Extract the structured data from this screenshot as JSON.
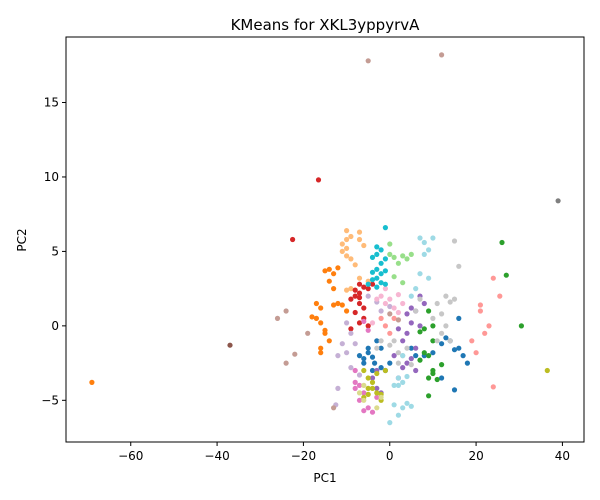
{
  "chart_data": {
    "type": "scatter",
    "title": "KMeans for XKL3yppyrvA",
    "xlabel": "PC1",
    "ylabel": "PC2",
    "xlim": [
      -75,
      45
    ],
    "ylim": [
      -7.8,
      19.4
    ],
    "xticks": [
      -60,
      -40,
      -20,
      0,
      20,
      40
    ],
    "yticks": [
      -5,
      0,
      5,
      10,
      15
    ],
    "grid": false,
    "legend": "none",
    "colors": {
      "blue": "#1f77b4",
      "light_blue": "#aec7e8",
      "orange": "#ff7f0e",
      "light_orange": "#ffbb78",
      "green": "#2ca02c",
      "light_green": "#98df8a",
      "red": "#d62728",
      "light_red": "#ff9896",
      "purple": "#9467bd",
      "light_purple": "#c5b0d5",
      "brown": "#8c564b",
      "light_brown": "#c49c94",
      "pink": "#e377c2",
      "light_pink": "#f7b6d2",
      "gray": "#7f7f7f",
      "light_gray": "#c7c7c7",
      "olive": "#bcbd22",
      "light_olive": "#dbdb8d",
      "cyan": "#17becf",
      "light_cyan": "#9edae5"
    },
    "series": [
      {
        "color": "blue",
        "points": [
          [
            -5,
            -1.8
          ],
          [
            -4,
            -2.1
          ],
          [
            -3.5,
            -2.5
          ],
          [
            -6,
            -2.2
          ],
          [
            -2,
            -1.5
          ],
          [
            0,
            -2.5
          ],
          [
            5,
            -1.5
          ],
          [
            6,
            -2
          ],
          [
            8,
            -2
          ],
          [
            10,
            -1.8
          ],
          [
            12,
            -1.2
          ],
          [
            15,
            -1.6
          ],
          [
            17,
            -2
          ],
          [
            13,
            -0.8
          ],
          [
            16,
            0.5
          ],
          [
            14,
            -1
          ],
          [
            -3,
            -1
          ],
          [
            -1,
            -3
          ],
          [
            15,
            -4.3
          ],
          [
            12,
            -3.5
          ],
          [
            -4,
            -3
          ],
          [
            -6,
            -2.5
          ],
          [
            -2,
            -2.8
          ],
          [
            -5,
            -1.5
          ],
          [
            -7,
            -2
          ],
          [
            16,
            -1.5
          ],
          [
            18,
            -2.5
          ]
        ]
      },
      {
        "color": "orange",
        "points": [
          [
            -69,
            -3.8
          ],
          [
            -14,
            3.8
          ],
          [
            -13,
            3.5
          ],
          [
            -12,
            3.9
          ],
          [
            -15,
            3.7
          ],
          [
            -16,
            1.2
          ],
          [
            -17,
            0.5
          ],
          [
            -18,
            0.6
          ],
          [
            -16,
            -1.5
          ],
          [
            -14,
            -1
          ],
          [
            -12,
            1.5
          ],
          [
            -11,
            1.4
          ],
          [
            -15,
            -0.3
          ],
          [
            -13,
            2.5
          ],
          [
            -17,
            1.5
          ],
          [
            -16,
            0.2
          ],
          [
            -15,
            -0.5
          ],
          [
            -14,
            3
          ],
          [
            -16,
            -1.8
          ],
          [
            -10,
            1
          ],
          [
            -13,
            1.4
          ]
        ]
      },
      {
        "color": "light_orange",
        "points": [
          [
            -10,
            6.4
          ],
          [
            -9,
            6
          ],
          [
            -10,
            5.8
          ],
          [
            -11,
            5.5
          ],
          [
            -10,
            5.2
          ],
          [
            -11,
            5
          ],
          [
            -10,
            4.7
          ],
          [
            -9,
            4.5
          ],
          [
            -8,
            4.1
          ],
          [
            -7,
            6.3
          ],
          [
            -7,
            5.8
          ],
          [
            -6,
            5.4
          ],
          [
            -9,
            2.5
          ],
          [
            -10,
            2.4
          ],
          [
            -7,
            3.2
          ],
          [
            -5,
            3
          ]
        ]
      },
      {
        "color": "green",
        "points": [
          [
            26,
            5.6
          ],
          [
            27,
            3.4
          ],
          [
            30.5,
            0
          ],
          [
            8,
            -0.2
          ],
          [
            10,
            0
          ],
          [
            9,
            1
          ],
          [
            10,
            -1
          ],
          [
            7,
            -0.4
          ],
          [
            8,
            -1.8
          ],
          [
            9,
            -2
          ],
          [
            10,
            -3.2
          ],
          [
            9,
            -3.5
          ],
          [
            10,
            -3
          ],
          [
            11,
            -3.6
          ],
          [
            9,
            -4.7
          ],
          [
            7,
            -2.3
          ],
          [
            12,
            -2.6
          ]
        ]
      },
      {
        "color": "light_green",
        "points": [
          [
            0,
            4.8
          ],
          [
            1,
            4.6
          ],
          [
            2,
            4.2
          ],
          [
            3,
            4.7
          ],
          [
            4,
            4.5
          ],
          [
            1,
            3.3
          ],
          [
            3,
            2.9
          ],
          [
            5,
            4.8
          ],
          [
            0,
            5.5
          ]
        ]
      },
      {
        "color": "red",
        "points": [
          [
            -16.5,
            9.8
          ],
          [
            -22.5,
            5.8
          ],
          [
            -7,
            2.8
          ],
          [
            -6,
            2.6
          ],
          [
            -5,
            2.5
          ],
          [
            -4,
            2.8
          ],
          [
            -7,
            2.2
          ],
          [
            -8,
            2.4
          ],
          [
            -9,
            1.8
          ],
          [
            -7,
            1.5
          ],
          [
            -6,
            1.2
          ],
          [
            -8,
            0.9
          ],
          [
            -7,
            0.2
          ],
          [
            -6,
            0.5
          ],
          [
            -5,
            0
          ],
          [
            -9,
            -0.2
          ],
          [
            -8,
            2
          ],
          [
            -7,
            1.9
          ]
        ]
      },
      {
        "color": "light_red",
        "points": [
          [
            21,
            1.4
          ],
          [
            21,
            1
          ],
          [
            23,
            0
          ],
          [
            22,
            -0.5
          ],
          [
            25.5,
            2
          ],
          [
            24,
            3.2
          ],
          [
            19,
            -1
          ],
          [
            20,
            -1.8
          ],
          [
            24,
            -4.1
          ],
          [
            1,
            0.5
          ],
          [
            -1,
            0
          ],
          [
            0,
            -0.5
          ],
          [
            -2,
            0.5
          ]
        ]
      },
      {
        "color": "purple",
        "points": [
          [
            5,
            1.2
          ],
          [
            4,
            0.8
          ],
          [
            6,
            1
          ],
          [
            5,
            0.2
          ],
          [
            4,
            -0.5
          ],
          [
            3,
            -1
          ],
          [
            2,
            -0.2
          ],
          [
            6,
            -1.5
          ],
          [
            7,
            2
          ],
          [
            8,
            1.5
          ],
          [
            7,
            0
          ],
          [
            4,
            -2.5
          ],
          [
            5,
            -2.2
          ],
          [
            6,
            -3
          ],
          [
            2,
            -3.5
          ],
          [
            1,
            -2
          ],
          [
            3,
            -2.8
          ],
          [
            -3,
            -4.2
          ],
          [
            -2,
            -4.5
          ],
          [
            -4,
            -3.5
          ],
          [
            -3,
            -3
          ]
        ]
      },
      {
        "color": "light_purple",
        "points": [
          [
            -10,
            0.2
          ],
          [
            -9,
            -0.5
          ],
          [
            -11,
            -1.2
          ],
          [
            -10,
            -1.8
          ],
          [
            -9,
            -2.8
          ],
          [
            -8,
            -1.2
          ],
          [
            -12,
            -2
          ],
          [
            -12,
            -4.2
          ],
          [
            -12.5,
            -5.3
          ],
          [
            -7,
            -3.3
          ],
          [
            -5,
            2
          ],
          [
            -3,
            1.6
          ],
          [
            -2,
            1
          ],
          [
            0,
            1.3
          ]
        ]
      },
      {
        "color": "brown",
        "points": [
          [
            -37,
            -1.3
          ]
        ]
      },
      {
        "color": "light_brown",
        "points": [
          [
            -24,
            1
          ],
          [
            -26,
            0.5
          ],
          [
            -19,
            -0.5
          ],
          [
            -22,
            -1.9
          ],
          [
            -24,
            -2.5
          ],
          [
            -13,
            -5.5
          ],
          [
            -5,
            17.8
          ],
          [
            12,
            18.2
          ],
          [
            0,
            0.8
          ],
          [
            2,
            0.4
          ]
        ]
      },
      {
        "color": "pink",
        "points": [
          [
            -8,
            -4.2
          ],
          [
            -7,
            -4
          ],
          [
            -6,
            -4.5
          ],
          [
            -8,
            -3.8
          ],
          [
            -7,
            -5
          ],
          [
            -6,
            -5.7
          ],
          [
            -5,
            -5.5
          ],
          [
            -4,
            -5.8
          ],
          [
            -3,
            -4.8
          ],
          [
            -8,
            -3
          ],
          [
            -5,
            -0.3
          ],
          [
            -6,
            0.3
          ]
        ]
      },
      {
        "color": "light_pink",
        "points": [
          [
            -3,
            1.8
          ],
          [
            -2,
            2
          ],
          [
            -1,
            1.5
          ],
          [
            0,
            1.8
          ],
          [
            1,
            1.2
          ],
          [
            2,
            2.1
          ],
          [
            3,
            1.5
          ],
          [
            -1,
            2.5
          ],
          [
            -4,
            0.2
          ],
          [
            2,
            0.9
          ]
        ]
      },
      {
        "color": "gray",
        "points": [
          [
            39,
            8.4
          ]
        ]
      },
      {
        "color": "light_gray",
        "points": [
          [
            15,
            5.7
          ],
          [
            16,
            4
          ],
          [
            15,
            1.8
          ],
          [
            14,
            1.6
          ],
          [
            13,
            2
          ],
          [
            11,
            1.5
          ],
          [
            12,
            0.8
          ],
          [
            13,
            0
          ],
          [
            12,
            -0.5
          ],
          [
            14,
            -1
          ],
          [
            3,
            -2
          ],
          [
            2,
            -1.8
          ],
          [
            4,
            -1.5
          ],
          [
            1,
            -1
          ],
          [
            5,
            -2.6
          ],
          [
            2,
            -2.5
          ],
          [
            6,
            1
          ],
          [
            7,
            1.8
          ],
          [
            -3,
            -1.5
          ],
          [
            -2,
            -1
          ],
          [
            0,
            -1.3
          ],
          [
            10,
            0.5
          ],
          [
            11,
            -1
          ]
        ]
      },
      {
        "color": "olive",
        "points": [
          [
            -5,
            -3.5
          ],
          [
            -4,
            -3.8
          ],
          [
            -3,
            -4.5
          ],
          [
            -5,
            -4.6
          ],
          [
            -6,
            -4.8
          ],
          [
            -4,
            -4.2
          ],
          [
            -2,
            -4.6
          ],
          [
            -1,
            -3
          ],
          [
            -6,
            -3
          ],
          [
            -5,
            -4.2
          ],
          [
            -3,
            -3.2
          ],
          [
            -2,
            -5
          ],
          [
            36.5,
            -3
          ]
        ]
      },
      {
        "color": "light_olive",
        "points": [
          [
            -6,
            -4
          ],
          [
            -3,
            -5.5
          ],
          [
            -2,
            -4.8
          ],
          [
            -7,
            -4.5
          ],
          [
            -6,
            -5
          ]
        ]
      },
      {
        "color": "cyan",
        "points": [
          [
            -1,
            6.6
          ],
          [
            -3,
            5.3
          ],
          [
            -2,
            5.1
          ],
          [
            -4,
            4.6
          ],
          [
            -3,
            4.8
          ],
          [
            -2,
            4.2
          ],
          [
            -1,
            4.5
          ],
          [
            -3,
            3.8
          ],
          [
            -4,
            3.6
          ],
          [
            -2,
            3.5
          ],
          [
            -3,
            3.2
          ],
          [
            -1,
            3.7
          ],
          [
            -4,
            3.1
          ],
          [
            -2,
            2.9
          ],
          [
            -3,
            2.6
          ],
          [
            -5,
            2.8
          ],
          [
            -1,
            2.8
          ]
        ]
      },
      {
        "color": "light_cyan",
        "points": [
          [
            7,
            5.9
          ],
          [
            8,
            5.6
          ],
          [
            10,
            5.9
          ],
          [
            9,
            5.1
          ],
          [
            8,
            4.8
          ],
          [
            7,
            3.5
          ],
          [
            9,
            3.2
          ],
          [
            6,
            2.5
          ],
          [
            5,
            2
          ],
          [
            3,
            -2
          ],
          [
            2,
            -3.5
          ],
          [
            3,
            -3.8
          ],
          [
            2,
            -4
          ],
          [
            4,
            -3.4
          ],
          [
            1,
            -5.3
          ],
          [
            3,
            -5.5
          ],
          [
            4,
            -5.2
          ],
          [
            2,
            -6
          ],
          [
            0,
            -6.5
          ],
          [
            5,
            -5.4
          ],
          [
            1,
            -4
          ]
        ]
      }
    ]
  }
}
